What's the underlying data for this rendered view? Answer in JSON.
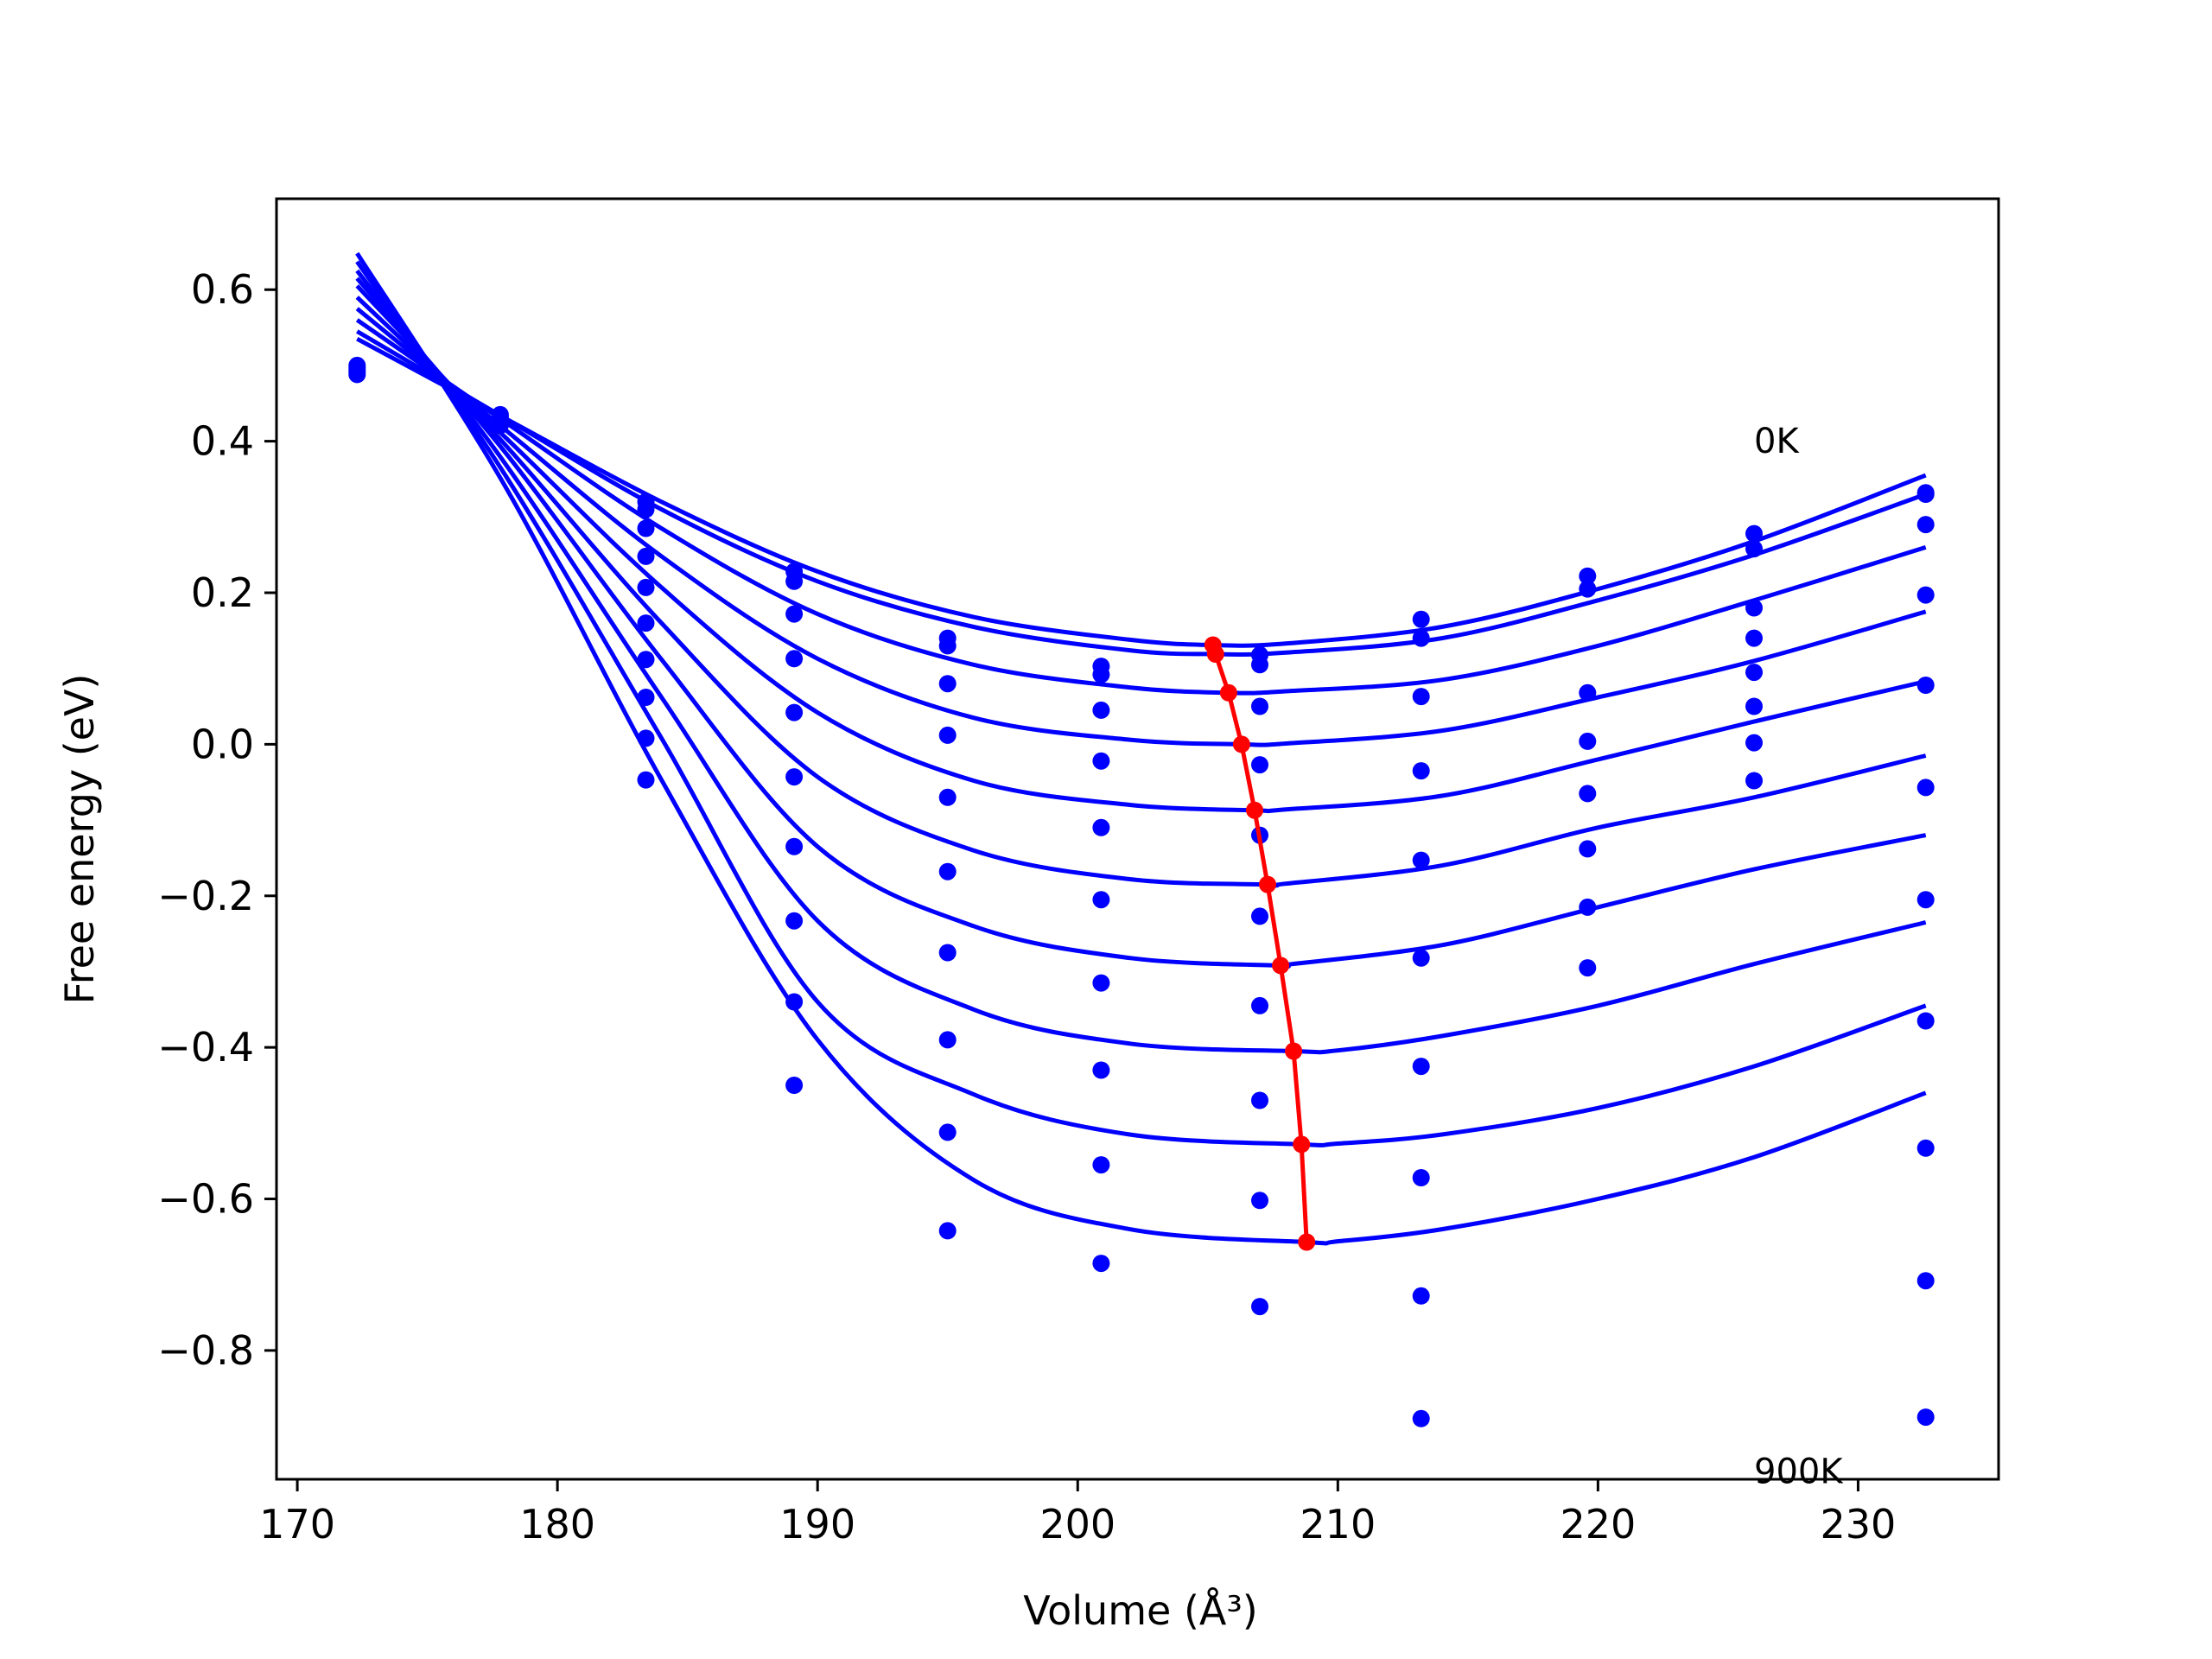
{
  "chart_data": {
    "type": "scatter",
    "title": "",
    "xlabel": "Volume (Å³)",
    "ylabel": "Free energy (eV)",
    "xlim": [
      169.2,
      235.4
    ],
    "ylim": [
      -0.97,
      0.72
    ],
    "x_ticks": [
      170,
      180,
      190,
      200,
      210,
      220,
      230
    ],
    "y_ticks": [
      0.6,
      0.4,
      0.2,
      0.0,
      -0.2,
      -0.4,
      -0.6,
      -0.8
    ],
    "x_tick_labels": [
      "170",
      "180",
      "190",
      "200",
      "210",
      "220",
      "230"
    ],
    "y_tick_labels": [
      "0.6",
      "0.4",
      "0.2",
      "0.0",
      "−0.2",
      "−0.4",
      "−0.6",
      "−0.8"
    ],
    "grid": false,
    "annotations": [
      {
        "text": "0K",
        "x": 226.0,
        "y": 0.385
      },
      {
        "text": "900K",
        "x": 226.0,
        "y": -0.975
      }
    ],
    "colors": {
      "fit_curves": "#0000ff",
      "data_points": "#0000ff",
      "minimum_path": "#ff0000",
      "axes": "#000000"
    },
    "volumes": [
      172.3,
      177.8,
      183.4,
      189.1,
      195.0,
      200.9,
      207.0,
      213.2,
      219.6,
      226.0,
      232.6
    ],
    "series": [
      {
        "points": [
          0.5,
          0.435,
          0.32,
          0.228,
          0.14,
          0.103,
          0.118,
          0.165,
          0.222,
          0.278,
          0.332
        ],
        "fit_curve": {
          "x": [
            172.3,
            178,
            184,
            190,
            196,
            202,
            205.2,
            208,
            214,
            220,
            226,
            232.6
          ],
          "y": [
            0.535,
            0.43,
            0.32,
            0.228,
            0.168,
            0.138,
            0.131,
            0.133,
            0.155,
            0.205,
            0.268,
            0.355
          ]
        },
        "min_point": {
          "x": 205.2,
          "y": 0.131
        }
      },
      {
        "points": [
          0.497,
          0.432,
          0.31,
          0.215,
          0.13,
          0.092,
          0.105,
          0.14,
          0.205,
          0.258,
          0.33
        ],
        "fit_curve": {
          "x": [
            172.3,
            178,
            184,
            190,
            196,
            202,
            205.3,
            208,
            214,
            220,
            226,
            232.6
          ],
          "y": [
            0.545,
            0.43,
            0.31,
            0.215,
            0.155,
            0.124,
            0.119,
            0.121,
            0.14,
            0.19,
            0.25,
            0.33
          ]
        },
        "min_point": {
          "x": 205.3,
          "y": 0.119
        }
      },
      {
        "points": [
          0.494,
          0.428,
          0.285,
          0.172,
          0.08,
          0.045,
          0.05,
          0.063,
          0.068,
          0.18,
          0.29
        ],
        "fit_curve": {
          "x": [
            172.3,
            178,
            184,
            190,
            196,
            202,
            205.8,
            208,
            214,
            220,
            226,
            232.6
          ],
          "y": [
            0.56,
            0.425,
            0.285,
            0.172,
            0.105,
            0.075,
            0.068,
            0.07,
            0.085,
            0.13,
            0.19,
            0.26
          ]
        },
        "min_point": {
          "x": 205.8,
          "y": 0.068
        }
      },
      {
        "points": [
          0.491,
          0.425,
          0.248,
          0.113,
          0.012,
          -0.022,
          -0.027,
          -0.035,
          0.004,
          0.14,
          0.197
        ],
        "fit_curve": {
          "x": [
            172.3,
            178,
            184,
            190,
            196,
            202,
            206.3,
            208,
            214,
            220,
            226,
            232.6
          ],
          "y": [
            0.575,
            0.415,
            0.248,
            0.113,
            0.035,
            0.006,
            0.0,
            0.001,
            0.018,
            0.062,
            0.11,
            0.175
          ]
        },
        "min_point": {
          "x": 206.3,
          "y": 0.0
        }
      },
      {
        "points": [
          0.488,
          0.421,
          0.207,
          0.042,
          -0.07,
          -0.11,
          -0.12,
          -0.153,
          -0.065,
          0.095,
          0.078
        ],
        "fit_curve": {
          "x": [
            172.3,
            178,
            184,
            190,
            196,
            202,
            206.8,
            208,
            214,
            220,
            226,
            232.6
          ],
          "y": [
            0.59,
            0.405,
            0.207,
            0.042,
            -0.048,
            -0.08,
            -0.087,
            -0.086,
            -0.068,
            -0.02,
            0.03,
            0.083
          ]
        },
        "min_point": {
          "x": 206.8,
          "y": -0.087
        }
      },
      {
        "points": [
          null,
          null,
          0.16,
          -0.043,
          -0.168,
          -0.205,
          -0.227,
          -0.282,
          -0.138,
          0.05,
          -0.057
        ],
        "fit_curve": {
          "x": [
            172.3,
            178,
            184,
            190,
            196,
            202,
            207.3,
            208,
            214,
            220,
            226,
            232.6
          ],
          "y": [
            0.605,
            0.395,
            0.16,
            -0.043,
            -0.14,
            -0.178,
            -0.185,
            -0.184,
            -0.16,
            -0.11,
            -0.07,
            -0.015
          ]
        },
        "min_point": {
          "x": 207.3,
          "y": -0.185
        }
      },
      {
        "points": [
          null,
          null,
          0.112,
          -0.135,
          -0.275,
          -0.315,
          -0.345,
          -0.425,
          -0.215,
          0.002,
          -0.205
        ],
        "fit_curve": {
          "x": [
            172.3,
            178,
            184,
            190,
            196,
            202,
            207.8,
            208,
            214,
            220,
            226,
            232.6
          ],
          "y": [
            0.615,
            0.385,
            0.112,
            -0.135,
            -0.24,
            -0.282,
            -0.292,
            -0.291,
            -0.265,
            -0.215,
            -0.165,
            -0.12
          ]
        },
        "min_point": {
          "x": 207.8,
          "y": -0.292
        }
      },
      {
        "points": [
          null,
          null,
          0.062,
          -0.233,
          -0.39,
          -0.43,
          -0.47,
          -0.572,
          -0.295,
          -0.048,
          -0.365
        ],
        "fit_curve": {
          "x": [
            172.3,
            178,
            184,
            190,
            196,
            202,
            208.3,
            210,
            214,
            220,
            226,
            232.6
          ],
          "y": [
            0.625,
            0.37,
            0.062,
            -0.233,
            -0.35,
            -0.395,
            -0.405,
            -0.404,
            -0.385,
            -0.345,
            -0.29,
            -0.235
          ]
        },
        "min_point": {
          "x": 208.3,
          "y": -0.405
        }
      },
      {
        "points": [
          null,
          null,
          0.008,
          -0.34,
          -0.512,
          -0.555,
          -0.602,
          -0.728,
          null,
          null,
          -0.533
        ],
        "fit_curve": {
          "x": [
            172.3,
            178,
            184,
            190,
            196,
            202,
            208.6,
            210,
            214,
            220,
            226,
            232.6
          ],
          "y": [
            0.637,
            0.355,
            0.008,
            -0.34,
            -0.462,
            -0.515,
            -0.528,
            -0.527,
            -0.515,
            -0.48,
            -0.425,
            -0.345
          ]
        },
        "min_point": {
          "x": 208.6,
          "y": -0.528
        }
      },
      {
        "points": [
          null,
          null,
          -0.047,
          -0.45,
          -0.642,
          -0.685,
          -0.742,
          -0.89,
          null,
          null,
          -0.708
        ],
        "fit_curve": {
          "x": [
            172.3,
            178,
            184,
            190,
            196,
            202,
            208.8,
            210,
            214,
            220,
            226,
            232.6
          ],
          "y": [
            0.648,
            0.34,
            -0.047,
            -0.39,
            -0.575,
            -0.64,
            -0.657,
            -0.656,
            -0.64,
            -0.6,
            -0.545,
            -0.46
          ]
        },
        "min_point": {
          "x": 208.8,
          "y": -0.657
        }
      }
    ],
    "extra_points": [
      {
        "x": 232.6,
        "y": -0.888
      }
    ]
  }
}
